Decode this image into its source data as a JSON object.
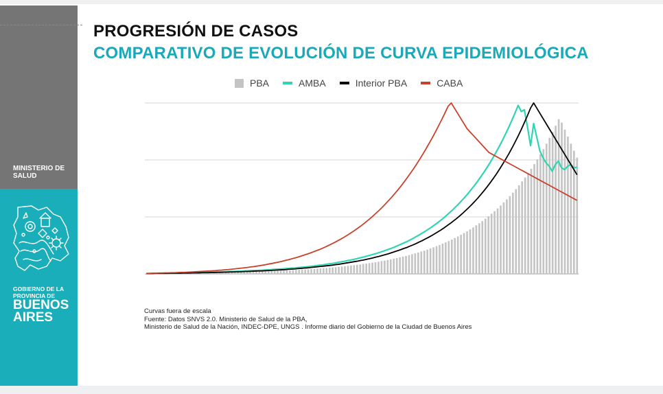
{
  "sidebar": {
    "ministerio": "MINISTERIO DE SALUD",
    "gobierno": "GOBIERNO DE LA PROVINCIA DE",
    "buenos_aires": "BUENOS AIRES",
    "colors": {
      "top": "#757575",
      "bottom": "#19aeb9"
    }
  },
  "slide": {
    "title": "PROGRESIÓN DE CASOS",
    "subtitle": "COMPARATIVO DE EVOLUCIÓN DE CURVA EPIDEMIOLÓGICA",
    "notes": [
      "Curvas fuera de escala",
      "Fuente: Datos SNVS 2.0. Ministerio de Salud de la PBA,",
      "Ministerio de Salud de la Nación, INDEC-DPE, UNGS . Informe diario del Gobierno de la Ciudad de Buenos Aires"
    ]
  },
  "chart_data": {
    "type": "bar",
    "title": "",
    "xlabel": "",
    "ylabel": "",
    "ylim": [
      0,
      100
    ],
    "grid": true,
    "legend_position": "top-center",
    "note": "Curvas fuera de escala",
    "series": [
      {
        "name": "PBA",
        "kind": "bar",
        "color": "#c4c4c4",
        "values": [
          0.2,
          0.2,
          0.3,
          0.3,
          0.3,
          0.3,
          0.4,
          0.4,
          0.4,
          0.4,
          0.5,
          0.5,
          0.5,
          0.5,
          0.6,
          0.6,
          0.6,
          0.6,
          0.7,
          0.7,
          0.7,
          0.8,
          0.8,
          0.8,
          0.9,
          0.9,
          0.9,
          1.0,
          1.0,
          1.1,
          1.1,
          1.1,
          1.2,
          1.2,
          1.3,
          1.3,
          1.4,
          1.4,
          1.5,
          1.5,
          1.6,
          1.7,
          1.7,
          1.8,
          1.9,
          1.9,
          2.0,
          2.1,
          2.2,
          2.3,
          2.4,
          2.5,
          2.6,
          2.7,
          2.8,
          2.9,
          3.1,
          3.2,
          3.3,
          3.5,
          3.6,
          3.8,
          3.9,
          4.1,
          4.3,
          4.5,
          4.7,
          4.9,
          5.1,
          5.3,
          5.5,
          5.8,
          6.0,
          6.3,
          6.6,
          6.8,
          7.1,
          7.5,
          7.8,
          8.1,
          8.5,
          8.9,
          9.3,
          9.7,
          10.1,
          10.5,
          11.0,
          11.5,
          12.0,
          12.5,
          13.1,
          13.6,
          14.2,
          14.9,
          15.5,
          16.2,
          16.9,
          17.7,
          18.4,
          19.2,
          20.1,
          21.0,
          21.9,
          22.9,
          23.9,
          24.9,
          26.0,
          27.2,
          28.4,
          29.6,
          30.9,
          32.3,
          33.7,
          35.2,
          36.7,
          38.3,
          40.0,
          41.8,
          43.6,
          45.5,
          47.5,
          49.6,
          51.8,
          54.1,
          56.4,
          58.9,
          61.5,
          64.2,
          67.0,
          70.0,
          73.0,
          76.2,
          79.6,
          83.1,
          86.7,
          90.5,
          88.5,
          84.4,
          80.3,
          76.2,
          72.1,
          68.0
        ]
      },
      {
        "name": "AMBA",
        "kind": "line",
        "color": "#2fd5b2",
        "values": [
          0.2,
          0.2,
          0.3,
          0.3,
          0.3,
          0.4,
          0.4,
          0.4,
          0.5,
          0.5,
          0.5,
          0.6,
          0.6,
          0.6,
          0.7,
          0.7,
          0.8,
          0.8,
          0.9,
          0.9,
          1.0,
          1.0,
          1.1,
          1.1,
          1.2,
          1.2,
          1.3,
          1.4,
          1.4,
          1.5,
          1.6,
          1.6,
          1.7,
          1.8,
          1.9,
          2.0,
          2.0,
          2.1,
          2.2,
          2.3,
          2.4,
          2.6,
          2.7,
          2.8,
          2.9,
          3.1,
          3.2,
          3.4,
          3.5,
          3.7,
          3.9,
          4.0,
          4.2,
          4.4,
          4.6,
          4.9,
          5.1,
          5.3,
          5.6,
          5.9,
          6.1,
          6.4,
          6.8,
          7.1,
          7.4,
          7.8,
          8.1,
          8.5,
          8.9,
          9.4,
          9.8,
          10.3,
          10.8,
          11.3,
          11.8,
          12.4,
          13.0,
          13.6,
          14.3,
          14.9,
          15.6,
          16.4,
          17.2,
          18.0,
          18.8,
          19.7,
          20.7,
          21.7,
          22.7,
          23.8,
          24.9,
          26.1,
          27.3,
          28.6,
          29.9,
          31.3,
          32.8,
          34.4,
          36.0,
          37.7,
          39.5,
          41.3,
          43.3,
          45.3,
          47.4,
          49.7,
          52.0,
          54.4,
          57.0,
          59.6,
          62.4,
          65.3,
          68.4,
          71.6,
          74.9,
          78.4,
          82.1,
          86.0,
          90.0,
          94.2,
          98.6,
          95.0,
          96.0,
          86.0,
          75.0,
          88.0,
          80.0,
          72.0,
          68.0,
          65.0,
          63.0,
          60.0,
          64.0,
          66.0,
          62.0,
          61.0,
          63.0,
          64.0,
          62.0,
          62.5
        ]
      },
      {
        "name": "Interior PBA",
        "kind": "line",
        "color": "#000000",
        "values": [
          0.2,
          0.2,
          0.2,
          0.3,
          0.3,
          0.3,
          0.3,
          0.3,
          0.4,
          0.4,
          0.4,
          0.4,
          0.5,
          0.5,
          0.5,
          0.6,
          0.6,
          0.6,
          0.7,
          0.7,
          0.7,
          0.8,
          0.8,
          0.9,
          0.9,
          1.0,
          1.0,
          1.1,
          1.1,
          1.2,
          1.2,
          1.3,
          1.4,
          1.4,
          1.5,
          1.6,
          1.7,
          1.7,
          1.8,
          1.9,
          2.0,
          2.1,
          2.2,
          2.3,
          2.4,
          2.5,
          2.7,
          2.8,
          2.9,
          3.1,
          3.2,
          3.4,
          3.5,
          3.7,
          3.9,
          4.1,
          4.3,
          4.5,
          4.7,
          4.9,
          5.1,
          5.4,
          5.6,
          5.9,
          6.2,
          6.5,
          6.8,
          7.1,
          7.4,
          7.8,
          8.1,
          8.5,
          8.9,
          9.3,
          9.8,
          10.2,
          10.7,
          11.2,
          11.7,
          12.3,
          12.9,
          13.5,
          14.1,
          14.8,
          15.4,
          16.2,
          16.9,
          17.7,
          18.6,
          19.4,
          20.4,
          21.3,
          22.3,
          23.4,
          24.5,
          25.6,
          26.8,
          28.1,
          29.4,
          30.8,
          32.2,
          33.7,
          35.3,
          37.0,
          38.7,
          40.5,
          42.4,
          44.4,
          46.5,
          48.7,
          51.0,
          53.4,
          55.9,
          58.5,
          61.3,
          64.2,
          67.2,
          70.3,
          73.6,
          77.1,
          80.7,
          84.5,
          88.5,
          92.6,
          97.0,
          100.0,
          97.0,
          94.0,
          91.0,
          88.0,
          85.0,
          82.0,
          79.0,
          76.0,
          73.0,
          70.0,
          67.0,
          64.0,
          61.0,
          58.0
        ]
      },
      {
        "name": "CABA",
        "kind": "line",
        "color": "#c9412b",
        "values": [
          0.3,
          0.3,
          0.4,
          0.4,
          0.5,
          0.5,
          0.6,
          0.6,
          0.7,
          0.7,
          0.8,
          0.9,
          0.9,
          1.0,
          1.1,
          1.2,
          1.3,
          1.4,
          1.5,
          1.6,
          1.7,
          1.8,
          1.9,
          2.1,
          2.2,
          2.4,
          2.5,
          2.7,
          2.9,
          3.1,
          3.3,
          3.5,
          3.7,
          4.0,
          4.2,
          4.5,
          4.8,
          5.1,
          5.4,
          5.8,
          6.1,
          6.5,
          6.9,
          7.3,
          7.8,
          8.2,
          8.7,
          9.2,
          9.7,
          10.3,
          10.9,
          11.5,
          12.1,
          12.8,
          13.5,
          14.2,
          15.0,
          15.8,
          16.7,
          17.6,
          18.5,
          19.5,
          20.5,
          21.6,
          22.7,
          23.9,
          25.1,
          26.4,
          27.7,
          29.1,
          30.6,
          32.1,
          33.7,
          35.4,
          37.1,
          38.9,
          40.8,
          42.8,
          44.8,
          46.9,
          49.1,
          51.4,
          53.8,
          56.3,
          58.9,
          61.5,
          64.3,
          67.2,
          70.2,
          73.3,
          76.5,
          79.8,
          83.2,
          86.8,
          90.4,
          94.2,
          98.1,
          100.0,
          97.0,
          94.0,
          91.0,
          88.0,
          85.0,
          83.0,
          81.0,
          79.0,
          77.0,
          75.0,
          73.0,
          71.0,
          70.0,
          69.0,
          68.0,
          67.0,
          66.0,
          65.0,
          64.0,
          63.0,
          62.0,
          61.0,
          60.0,
          59.0,
          58.0,
          57.0,
          56.0,
          55.0,
          54.0,
          53.0,
          52.0,
          51.0,
          50.0,
          49.0,
          48.0,
          47.0,
          46.0,
          45.0,
          44.0,
          43.0
        ]
      }
    ]
  }
}
